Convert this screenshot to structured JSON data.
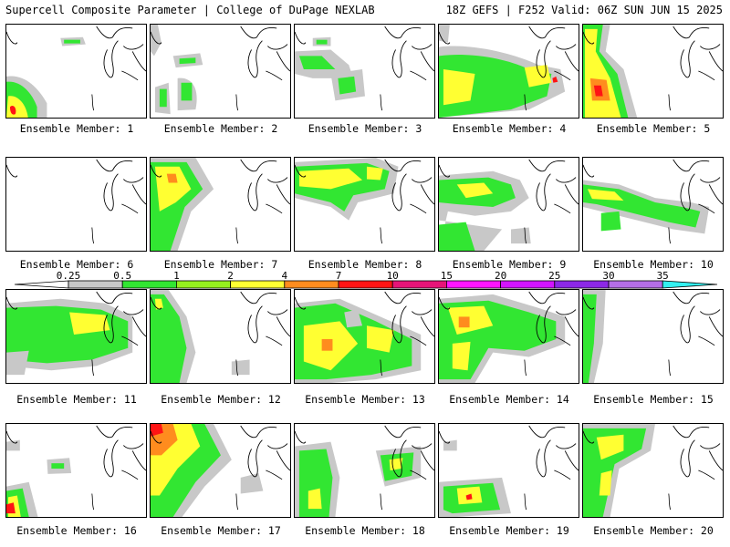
{
  "header": {
    "title_left": "Supercell Composite Parameter | College of DuPage NEXLAB",
    "title_right": "18Z GEFS | F252 Valid: 06Z SUN JUN 15 2025"
  },
  "member_label_prefix": "Ensemble Member: ",
  "members": [
    {
      "n": 1,
      "label": "Ensemble Member: 1"
    },
    {
      "n": 2,
      "label": "Ensemble Member: 2"
    },
    {
      "n": 3,
      "label": "Ensemble Member: 3"
    },
    {
      "n": 4,
      "label": "Ensemble Member: 4"
    },
    {
      "n": 5,
      "label": "Ensemble Member: 5"
    },
    {
      "n": 6,
      "label": "Ensemble Member: 6"
    },
    {
      "n": 7,
      "label": "Ensemble Member: 7"
    },
    {
      "n": 8,
      "label": "Ensemble Member: 8"
    },
    {
      "n": 9,
      "label": "Ensemble Member: 9"
    },
    {
      "n": 10,
      "label": "Ensemble Member: 10"
    },
    {
      "n": 11,
      "label": "Ensemble Member: 11"
    },
    {
      "n": 12,
      "label": "Ensemble Member: 12"
    },
    {
      "n": 13,
      "label": "Ensemble Member: 13"
    },
    {
      "n": 14,
      "label": "Ensemble Member: 14"
    },
    {
      "n": 15,
      "label": "Ensemble Member: 15"
    },
    {
      "n": 16,
      "label": "Ensemble Member: 16"
    },
    {
      "n": 17,
      "label": "Ensemble Member: 17"
    },
    {
      "n": 18,
      "label": "Ensemble Member: 18"
    },
    {
      "n": 19,
      "label": "Ensemble Member: 19"
    },
    {
      "n": 20,
      "label": "Ensemble Member: 20"
    }
  ],
  "colorbar": {
    "labels": [
      "0.25",
      "0.5",
      "1",
      "2",
      "4",
      "7",
      "10",
      "15",
      "20",
      "25",
      "30",
      "35"
    ],
    "colors": [
      "#c8c8c8",
      "#32e632",
      "#96f01e",
      "#ffff32",
      "#ff8c1e",
      "#ff1414",
      "#e61478",
      "#ff14ff",
      "#d214ff",
      "#8c28e6",
      "#b46ee6",
      "#32f0f0"
    ]
  },
  "colors": {
    "light": "#c8c8c8",
    "green": "#32e632",
    "lime": "#96f01e",
    "yellow": "#ffff32",
    "orange": "#ff8c1e",
    "red": "#ff1414"
  }
}
